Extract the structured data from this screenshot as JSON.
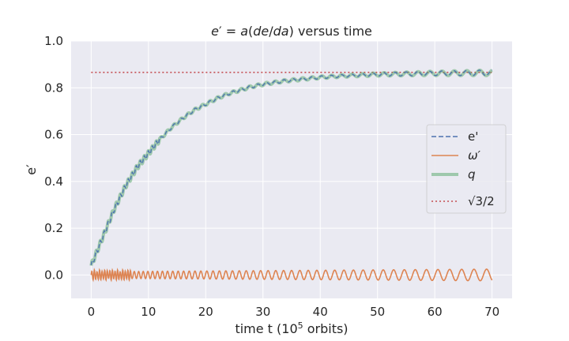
{
  "chart_data": {
    "type": "line",
    "title": "e′ = a(de/da) versus time",
    "xlabel": "time t    (10⁵ orbits)",
    "ylabel": "e′",
    "xlim": [
      -3.5,
      73.5
    ],
    "ylim": [
      -0.1,
      1.0
    ],
    "xticks": [
      0,
      10,
      20,
      30,
      40,
      50,
      60,
      70
    ],
    "yticks": [
      0.0,
      0.2,
      0.4,
      0.6,
      0.8,
      1.0
    ],
    "xtick_labels": [
      "0",
      "10",
      "20",
      "30",
      "40",
      "50",
      "60",
      "70"
    ],
    "ytick_labels": [
      "0.0",
      "0.2",
      "0.4",
      "0.6",
      "0.8",
      "1.0"
    ],
    "grid": true,
    "legend_position": "center-right",
    "series": [
      {
        "name": "e'",
        "style": "dashed",
        "color": "#4c72b0",
        "x": [
          0,
          1,
          2,
          3,
          4,
          5,
          6,
          7,
          8,
          9,
          10,
          12,
          14,
          16,
          18,
          20,
          22,
          24,
          26,
          28,
          30,
          32,
          34,
          36,
          38,
          40,
          42,
          44,
          46,
          48,
          50,
          52,
          54,
          56,
          58,
          60,
          62,
          64,
          66,
          68,
          70
        ],
        "y": [
          0.04,
          0.1,
          0.16,
          0.22,
          0.28,
          0.33,
          0.38,
          0.42,
          0.46,
          0.49,
          0.52,
          0.58,
          0.63,
          0.67,
          0.705,
          0.73,
          0.755,
          0.775,
          0.79,
          0.805,
          0.815,
          0.823,
          0.83,
          0.835,
          0.84,
          0.845,
          0.848,
          0.851,
          0.853,
          0.855,
          0.857,
          0.858,
          0.859,
          0.86,
          0.861,
          0.862,
          0.862,
          0.863,
          0.863,
          0.864,
          0.864
        ]
      },
      {
        "name": "ω′",
        "style": "solid",
        "color": "#dd8452",
        "x": [
          0,
          70
        ],
        "y": [
          0.0,
          0.0
        ],
        "amplitude": [
          0.015,
          0.025
        ]
      },
      {
        "name": "q",
        "style": "thick",
        "color": "#55a868",
        "x": [
          0,
          1,
          2,
          3,
          4,
          5,
          6,
          7,
          8,
          9,
          10,
          12,
          14,
          16,
          18,
          20,
          22,
          24,
          26,
          28,
          30,
          32,
          34,
          36,
          38,
          40,
          42,
          44,
          46,
          48,
          50,
          52,
          54,
          56,
          58,
          60,
          62,
          64,
          66,
          68,
          70
        ],
        "y": [
          0.04,
          0.1,
          0.16,
          0.22,
          0.28,
          0.33,
          0.38,
          0.42,
          0.46,
          0.49,
          0.52,
          0.58,
          0.63,
          0.67,
          0.705,
          0.73,
          0.755,
          0.775,
          0.79,
          0.805,
          0.815,
          0.823,
          0.83,
          0.835,
          0.84,
          0.845,
          0.848,
          0.851,
          0.853,
          0.855,
          0.857,
          0.858,
          0.859,
          0.86,
          0.861,
          0.862,
          0.862,
          0.863,
          0.863,
          0.864,
          0.864
        ]
      },
      {
        "name": "√3/2",
        "style": "dotted",
        "color": "#c44e52",
        "x": [
          0,
          70
        ],
        "y": [
          0.866,
          0.866
        ]
      }
    ]
  }
}
